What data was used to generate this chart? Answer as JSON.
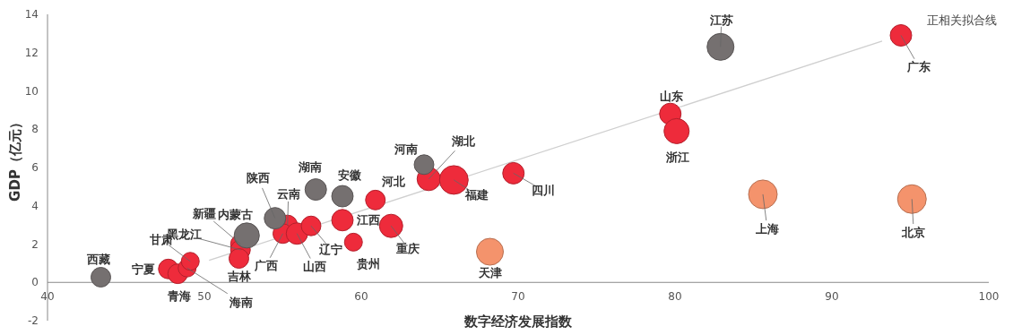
{
  "chart_data": {
    "type": "bubble",
    "xlabel": "数字经济发展指数",
    "ylabel": "GDP（亿元）",
    "xlim": [
      40,
      100
    ],
    "xticks": [
      40,
      50,
      60,
      70,
      80,
      90,
      100
    ],
    "ylim": [
      -2,
      14
    ],
    "yticks": [
      -2,
      0,
      2,
      4,
      6,
      8,
      10,
      12,
      14
    ],
    "grid": false,
    "series": [
      {
        "color": "#ee2b3b",
        "x": [
          47.7,
          48.3,
          48.9,
          49.1,
          52.3,
          52.3,
          52.2,
          55.3,
          55.0,
          55.9,
          56.8,
          58.8,
          59.5,
          60.9,
          61.9,
          64.3,
          65.9,
          69.7,
          79.7,
          80.1,
          94.4
        ],
        "values": [
          0.7,
          0.45,
          0.75,
          1.1,
          2.0,
          1.7,
          1.25,
          3.0,
          2.55,
          2.55,
          2.95,
          3.25,
          2.1,
          4.3,
          2.95,
          5.4,
          5.35,
          5.7,
          8.8,
          7.9,
          12.9
        ],
        "sizes": [
          0.47,
          0.47,
          0.39,
          0.39,
          0.47,
          0.47,
          0.47,
          0.47,
          0.47,
          0.56,
          0.47,
          0.56,
          0.39,
          0.47,
          0.66,
          0.66,
          1,
          0.56,
          0.56,
          0.77,
          0.56
        ]
      },
      {
        "color": "#757070",
        "x": [
          43.4,
          52.7,
          54.5,
          57.1,
          58.8,
          64.0,
          82.9
        ],
        "values": [
          0.27,
          2.45,
          3.35,
          4.85,
          4.5,
          6.15,
          12.3
        ],
        "sizes": [
          0.47,
          0.77,
          0.56,
          0.56,
          0.56,
          0.47,
          0.88
        ]
      },
      {
        "color": "#f4936c",
        "x": [
          68.2,
          85.6,
          95.1
        ],
        "values": [
          1.6,
          4.6,
          4.35
        ],
        "sizes": [
          0.88,
          1,
          1
        ]
      },
      {
        "type": "line",
        "name": "正相关拟合线",
        "color": "#cfcfcf",
        "x": [
          50.3,
          93.2
        ],
        "values": [
          1.15,
          12.6
        ]
      }
    ],
    "annotations": [
      {
        "text": "宁夏",
        "x": 47.7,
        "y": 0.7
      },
      {
        "text": "青海",
        "x": 48.3,
        "y": 0.45
      },
      {
        "text": "海南",
        "x": 48.9,
        "y": 0.75
      },
      {
        "text": "甘肃",
        "x": 49.1,
        "y": 1.1
      },
      {
        "text": "新疆",
        "x": 52.3,
        "y": 2.0
      },
      {
        "text": "黑龙江",
        "x": 52.3,
        "y": 1.7
      },
      {
        "text": "吉林",
        "x": 52.2,
        "y": 1.25
      },
      {
        "text": "云南",
        "x": 55.3,
        "y": 3.0
      },
      {
        "text": "广西",
        "x": 55.0,
        "y": 2.55
      },
      {
        "text": "山西",
        "x": 55.9,
        "y": 2.55
      },
      {
        "text": "辽宁",
        "x": 56.8,
        "y": 2.95
      },
      {
        "text": "江西",
        "x": 58.8,
        "y": 3.25
      },
      {
        "text": "贵州",
        "x": 59.5,
        "y": 2.1
      },
      {
        "text": "河北",
        "x": 60.9,
        "y": 4.3
      },
      {
        "text": "重庆",
        "x": 61.9,
        "y": 2.95
      },
      {
        "text": "湖北",
        "x": 64.3,
        "y": 5.4
      },
      {
        "text": "福建",
        "x": 65.9,
        "y": 5.35
      },
      {
        "text": "四川",
        "x": 69.7,
        "y": 5.7
      },
      {
        "text": "山东",
        "x": 79.7,
        "y": 8.8
      },
      {
        "text": "浙江",
        "x": 80.1,
        "y": 7.9
      },
      {
        "text": "广东",
        "x": 94.4,
        "y": 12.9
      },
      {
        "text": "西藏",
        "x": 43.4,
        "y": 0.27
      },
      {
        "text": "内蒙古",
        "x": 52.7,
        "y": 2.45
      },
      {
        "text": "陕西",
        "x": 54.5,
        "y": 3.35
      },
      {
        "text": "湖南",
        "x": 57.1,
        "y": 4.85
      },
      {
        "text": "安徽",
        "x": 58.8,
        "y": 4.5
      },
      {
        "text": "河南",
        "x": 64.0,
        "y": 6.15
      },
      {
        "text": "江苏",
        "x": 82.9,
        "y": 12.3
      },
      {
        "text": "天津",
        "x": 68.2,
        "y": 1.6
      },
      {
        "text": "上海",
        "x": 85.6,
        "y": 4.6
      },
      {
        "text": "北京",
        "x": 95.1,
        "y": 4.35
      }
    ]
  }
}
